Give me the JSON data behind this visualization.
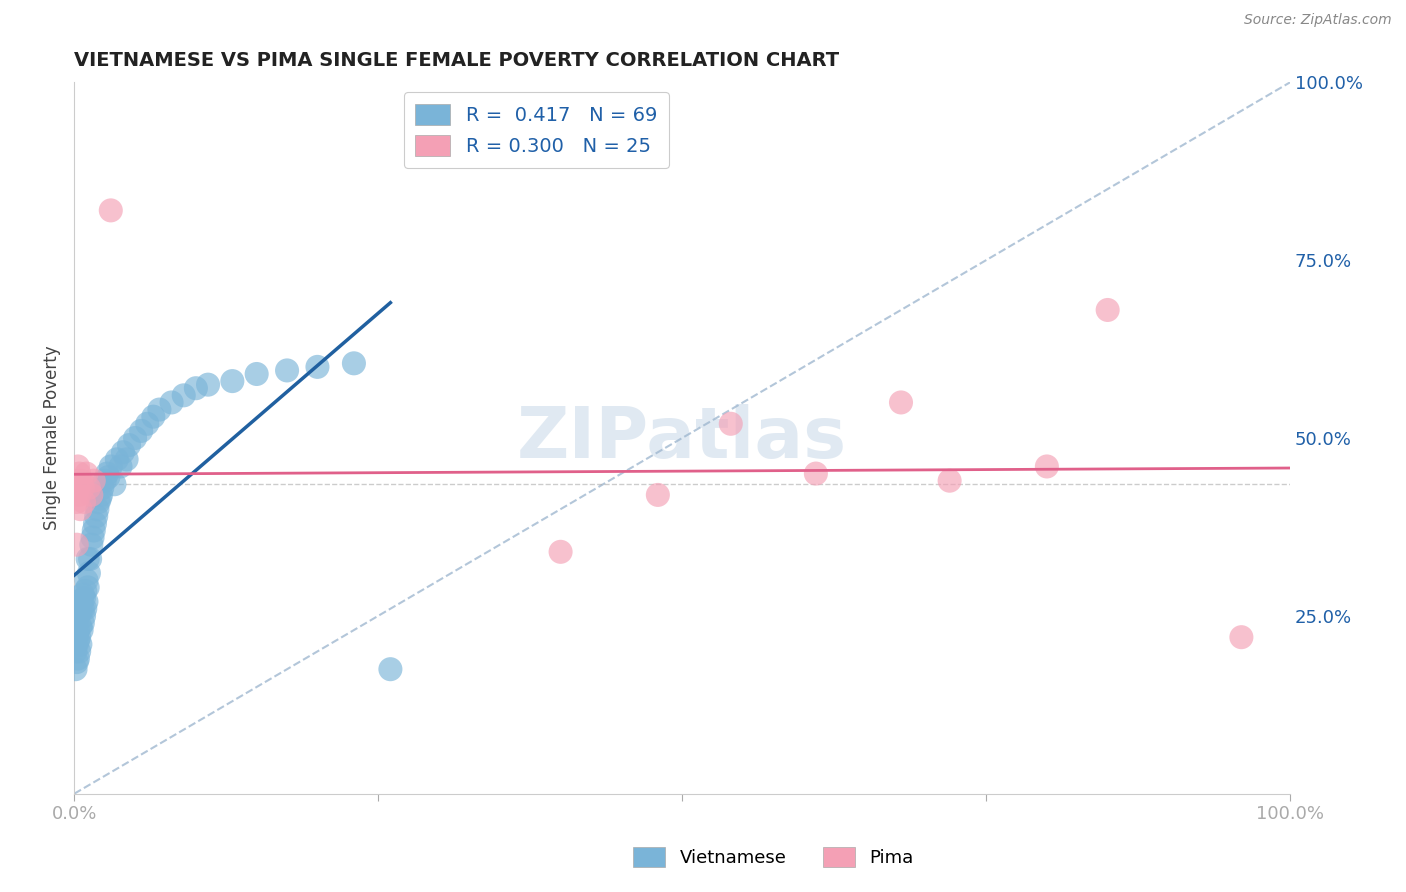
{
  "title": "VIETNAMESE VS PIMA SINGLE FEMALE POVERTY CORRELATION CHART",
  "source_text": "Source: ZipAtlas.com",
  "ylabel": "Single Female Poverty",
  "blue_color": "#7ab4d8",
  "pink_color": "#f4a0b5",
  "blue_line_color": "#2060a0",
  "pink_line_color": "#e0608a",
  "diag_color": "#a0b8d0",
  "watermark_color": "#c8d8e8",
  "hline_y": 0.435,
  "blue_points_x": [
    0.001,
    0.001,
    0.001,
    0.001,
    0.002,
    0.002,
    0.002,
    0.002,
    0.003,
    0.003,
    0.003,
    0.003,
    0.003,
    0.004,
    0.004,
    0.004,
    0.005,
    0.005,
    0.005,
    0.006,
    0.006,
    0.007,
    0.007,
    0.007,
    0.008,
    0.008,
    0.009,
    0.009,
    0.01,
    0.01,
    0.011,
    0.011,
    0.012,
    0.013,
    0.014,
    0.015,
    0.016,
    0.017,
    0.018,
    0.019,
    0.02,
    0.021,
    0.022,
    0.023,
    0.025,
    0.027,
    0.028,
    0.03,
    0.033,
    0.035,
    0.038,
    0.04,
    0.043,
    0.045,
    0.05,
    0.055,
    0.06,
    0.065,
    0.07,
    0.08,
    0.09,
    0.1,
    0.11,
    0.13,
    0.15,
    0.175,
    0.2,
    0.23,
    0.26
  ],
  "blue_points_y": [
    0.175,
    0.2,
    0.22,
    0.24,
    0.185,
    0.21,
    0.225,
    0.245,
    0.19,
    0.215,
    0.23,
    0.25,
    0.27,
    0.2,
    0.22,
    0.26,
    0.21,
    0.235,
    0.255,
    0.23,
    0.27,
    0.24,
    0.26,
    0.28,
    0.25,
    0.275,
    0.26,
    0.285,
    0.27,
    0.3,
    0.29,
    0.33,
    0.31,
    0.33,
    0.35,
    0.36,
    0.37,
    0.38,
    0.39,
    0.4,
    0.41,
    0.415,
    0.42,
    0.43,
    0.44,
    0.45,
    0.445,
    0.46,
    0.435,
    0.47,
    0.46,
    0.48,
    0.47,
    0.49,
    0.5,
    0.51,
    0.52,
    0.53,
    0.54,
    0.55,
    0.56,
    0.57,
    0.575,
    0.58,
    0.59,
    0.595,
    0.6,
    0.605,
    0.175
  ],
  "pink_points_x": [
    0.001,
    0.002,
    0.002,
    0.003,
    0.003,
    0.004,
    0.004,
    0.005,
    0.006,
    0.007,
    0.008,
    0.01,
    0.012,
    0.014,
    0.016,
    0.03,
    0.4,
    0.48,
    0.54,
    0.61,
    0.68,
    0.72,
    0.8,
    0.85,
    0.96
  ],
  "pink_points_y": [
    0.43,
    0.35,
    0.41,
    0.44,
    0.46,
    0.42,
    0.45,
    0.4,
    0.44,
    0.43,
    0.41,
    0.45,
    0.43,
    0.42,
    0.44,
    0.82,
    0.34,
    0.42,
    0.52,
    0.45,
    0.55,
    0.44,
    0.46,
    0.68,
    0.22
  ]
}
